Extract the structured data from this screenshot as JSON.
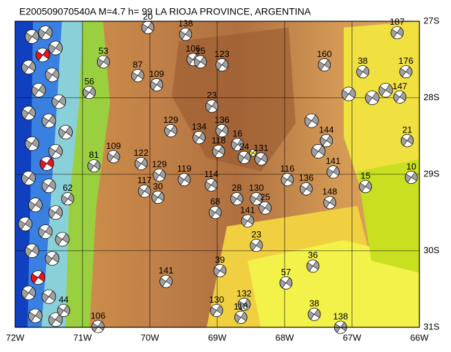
{
  "chart_data": {
    "type": "map",
    "title": "E200509070540A M=4.7 h= 99 LA RIOJA PROVINCE, ARGENTINA",
    "xlim": [
      -72,
      -66
    ],
    "ylim": [
      -31,
      -27
    ],
    "xticks": [
      {
        "value": -72,
        "label": "72W"
      },
      {
        "value": -71,
        "label": "71W"
      },
      {
        "value": -70,
        "label": "70W"
      },
      {
        "value": -69,
        "label": "69W"
      },
      {
        "value": -68,
        "label": "68W"
      },
      {
        "value": -67,
        "label": "67W"
      },
      {
        "value": -66,
        "label": "66W"
      }
    ],
    "yticks": [
      {
        "value": -27,
        "label": "27S"
      },
      {
        "value": -28,
        "label": "28S"
      },
      {
        "value": -29,
        "label": "29S"
      },
      {
        "value": -30,
        "label": "30S"
      },
      {
        "value": -31,
        "label": "31S"
      }
    ],
    "grid": true,
    "events": [
      {
        "lon": -69.47,
        "lat": -27.17,
        "depth": 138
      },
      {
        "lon": -70.03,
        "lat": -27.08,
        "depth": 20
      },
      {
        "lon": -69.36,
        "lat": -27.5,
        "depth": 106
      },
      {
        "lon": -69.25,
        "lat": -27.53,
        "depth": 15
      },
      {
        "lon": -68.93,
        "lat": -27.57,
        "depth": 123
      },
      {
        "lon": -67.41,
        "lat": -27.57,
        "depth": 160
      },
      {
        "lon": -70.18,
        "lat": -27.71,
        "depth": 87
      },
      {
        "lon": -69.9,
        "lat": -27.83,
        "depth": 109
      },
      {
        "lon": -69.08,
        "lat": -28.11,
        "depth": 23
      },
      {
        "lon": -69.69,
        "lat": -28.43,
        "depth": 129
      },
      {
        "lon": -69.27,
        "lat": -28.52,
        "depth": 134
      },
      {
        "lon": -68.93,
        "lat": -28.43,
        "depth": 136
      },
      {
        "lon": -68.7,
        "lat": -28.61,
        "depth": 16
      },
      {
        "lon": -68.98,
        "lat": -28.7,
        "depth": 118
      },
      {
        "lon": -68.35,
        "lat": -28.8,
        "depth": 131
      },
      {
        "lon": -68.6,
        "lat": -28.78,
        "depth": 24
      },
      {
        "lon": -70.54,
        "lat": -28.77,
        "depth": 109
      },
      {
        "lon": -70.83,
        "lat": -28.89,
        "depth": 81
      },
      {
        "lon": -70.13,
        "lat": -28.86,
        "depth": 122
      },
      {
        "lon": -69.86,
        "lat": -29.01,
        "depth": 129
      },
      {
        "lon": -69.49,
        "lat": -29.07,
        "depth": 119
      },
      {
        "lon": -70.08,
        "lat": -29.22,
        "depth": 117
      },
      {
        "lon": -69.88,
        "lat": -29.3,
        "depth": 30
      },
      {
        "lon": -69.09,
        "lat": -29.14,
        "depth": 114
      },
      {
        "lon": -68.71,
        "lat": -29.32,
        "depth": 28
      },
      {
        "lon": -68.42,
        "lat": -29.32,
        "depth": 130
      },
      {
        "lon": -68.29,
        "lat": -29.44,
        "depth": 25
      },
      {
        "lon": -69.03,
        "lat": -29.5,
        "depth": 68
      },
      {
        "lon": -68.55,
        "lat": -29.61,
        "depth": 141
      },
      {
        "lon": -67.96,
        "lat": -29.07,
        "depth": 116
      },
      {
        "lon": -67.68,
        "lat": -29.19,
        "depth": 136
      },
      {
        "lon": -67.33,
        "lat": -29.37,
        "depth": 148
      },
      {
        "lon": -66.8,
        "lat": -29.16,
        "depth": 15
      },
      {
        "lon": -68.42,
        "lat": -29.93,
        "depth": 23
      },
      {
        "lon": -68.96,
        "lat": -30.26,
        "depth": 39
      },
      {
        "lon": -69.76,
        "lat": -30.4,
        "depth": 141
      },
      {
        "lon": -67.98,
        "lat": -30.42,
        "depth": 57
      },
      {
        "lon": -67.58,
        "lat": -30.2,
        "depth": 36
      },
      {
        "lon": -69.01,
        "lat": -30.78,
        "depth": 130
      },
      {
        "lon": -68.6,
        "lat": -30.7,
        "depth": 132
      },
      {
        "lon": -68.65,
        "lat": -30.87,
        "depth": 118
      },
      {
        "lon": -67.56,
        "lat": -30.83,
        "depth": 38
      },
      {
        "lon": -67.17,
        "lat": -31.0,
        "depth": 138
      },
      {
        "lon": -70.77,
        "lat": -30.99,
        "depth": 106
      },
      {
        "lon": -67.38,
        "lat": -28.56,
        "depth": 144
      },
      {
        "lon": -67.28,
        "lat": -28.97,
        "depth": 141
      },
      {
        "lon": -66.18,
        "lat": -28.56,
        "depth": 21
      },
      {
        "lon": -66.12,
        "lat": -29.04,
        "depth": 10
      },
      {
        "lon": -66.33,
        "lat": -27.15,
        "depth": 187
      },
      {
        "lon": -66.2,
        "lat": -27.66,
        "depth": 176
      },
      {
        "lon": -66.29,
        "lat": -27.99,
        "depth": 147
      },
      {
        "lon": -66.84,
        "lat": -27.66,
        "depth": 38
      },
      {
        "lon": -70.69,
        "lat": -27.53,
        "depth": 53
      },
      {
        "lon": -70.9,
        "lat": -27.93,
        "depth": 56
      },
      {
        "lon": -71.22,
        "lat": -29.32,
        "depth": 62
      },
      {
        "lon": -71.28,
        "lat": -30.78,
        "depth": 44
      }
    ],
    "highlighted": [
      {
        "lon": -71.59,
        "lat": -27.44,
        "color": "#e8141c"
      },
      {
        "lon": -71.53,
        "lat": -28.86,
        "color": "#e8141c"
      },
      {
        "lon": -71.66,
        "lat": -30.35,
        "color": "#e8141c"
      },
      {
        "lon": -68.47,
        "lat": -28.72,
        "color": "#f5f500"
      }
    ],
    "other_events": [
      {
        "lon": -71.75,
        "lat": -27.2
      },
      {
        "lon": -71.55,
        "lat": -27.15
      },
      {
        "lon": -71.4,
        "lat": -27.35
      },
      {
        "lon": -71.8,
        "lat": -27.6
      },
      {
        "lon": -71.45,
        "lat": -27.7
      },
      {
        "lon": -71.65,
        "lat": -27.9
      },
      {
        "lon": -71.35,
        "lat": -28.05
      },
      {
        "lon": -71.8,
        "lat": -28.2
      },
      {
        "lon": -71.5,
        "lat": -28.3
      },
      {
        "lon": -71.25,
        "lat": -28.45
      },
      {
        "lon": -71.75,
        "lat": -28.6
      },
      {
        "lon": -71.4,
        "lat": -28.7
      },
      {
        "lon": -71.8,
        "lat": -29.05
      },
      {
        "lon": -71.5,
        "lat": -29.15
      },
      {
        "lon": -71.7,
        "lat": -29.4
      },
      {
        "lon": -71.4,
        "lat": -29.5
      },
      {
        "lon": -71.85,
        "lat": -29.65
      },
      {
        "lon": -71.55,
        "lat": -29.75
      },
      {
        "lon": -71.3,
        "lat": -29.85
      },
      {
        "lon": -71.75,
        "lat": -30.0
      },
      {
        "lon": -71.45,
        "lat": -30.1
      },
      {
        "lon": -71.8,
        "lat": -30.55
      },
      {
        "lon": -71.5,
        "lat": -30.6
      },
      {
        "lon": -71.7,
        "lat": -30.85
      },
      {
        "lon": -71.4,
        "lat": -30.9
      },
      {
        "lon": -67.05,
        "lat": -27.95
      },
      {
        "lon": -66.7,
        "lat": -28.0
      },
      {
        "lon": -66.5,
        "lat": -27.9
      },
      {
        "lon": -67.6,
        "lat": -28.3
      },
      {
        "lon": -67.5,
        "lat": -28.7
      }
    ]
  }
}
